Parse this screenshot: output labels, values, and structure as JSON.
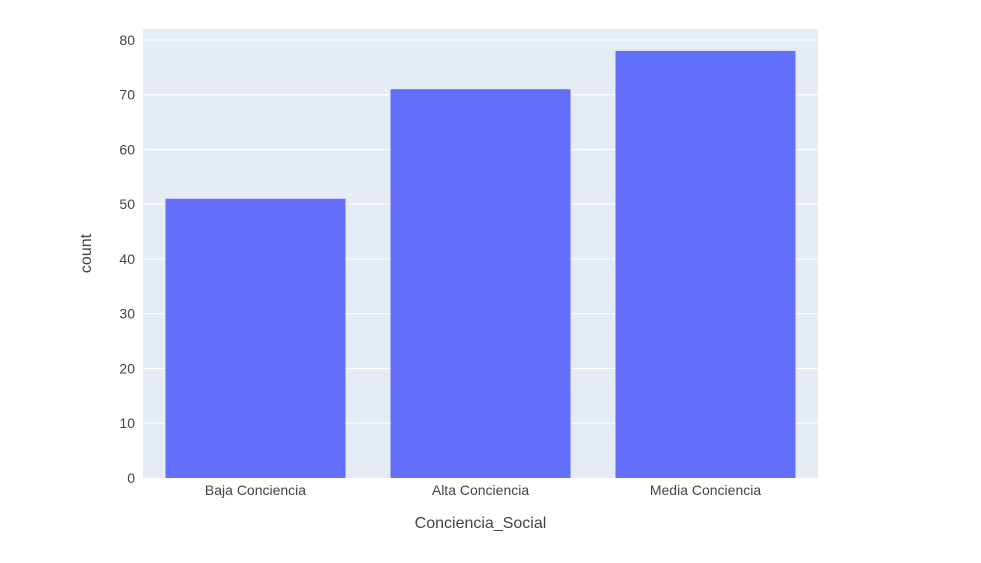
{
  "chart_data": {
    "type": "bar",
    "categories": [
      "Baja Conciencia",
      "Alta Conciencia",
      "Media Conciencia"
    ],
    "values": [
      51,
      71,
      78
    ],
    "xlabel": "Conciencia_Social",
    "ylabel": "count",
    "ylim": [
      0,
      82
    ],
    "yticks": [
      0,
      10,
      20,
      30,
      40,
      50,
      60,
      70,
      80
    ],
    "grid": true,
    "legend": "none",
    "colors": {
      "bar": "#636efa",
      "plot_background": "#e5ecf6",
      "gridline": "#ffffff",
      "text": "#444444"
    }
  }
}
